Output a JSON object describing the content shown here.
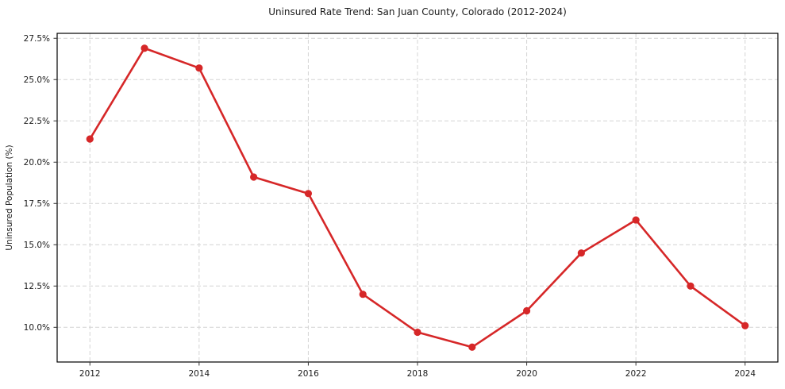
{
  "page": {
    "background": "#ffffff"
  },
  "chart_data": {
    "type": "line",
    "title": "Uninsured Rate Trend: San Juan County, Colorado (2012-2024)",
    "ylabel": "Uninsured Population (%)",
    "xlabel": "",
    "x": [
      2012,
      2013,
      2014,
      2015,
      2016,
      2017,
      2018,
      2019,
      2020,
      2021,
      2022,
      2023,
      2024
    ],
    "series": [
      {
        "name": "Uninsured rate",
        "color": "#d62728",
        "marker": "circle",
        "values": [
          21.4,
          26.9,
          25.7,
          19.1,
          18.1,
          12.0,
          9.7,
          8.8,
          11.0,
          14.5,
          16.5,
          12.5,
          10.1
        ]
      }
    ],
    "xlim": [
      2011.4,
      2024.6
    ],
    "ylim": [
      7.9,
      27.8
    ],
    "xticks": {
      "values": [
        2012,
        2014,
        2016,
        2018,
        2020,
        2022,
        2024
      ],
      "labels": [
        "2012",
        "2014",
        "2016",
        "2018",
        "2020",
        "2022",
        "2024"
      ]
    },
    "yticks": {
      "values": [
        10.0,
        12.5,
        15.0,
        17.5,
        20.0,
        22.5,
        25.0,
        27.5
      ],
      "labels": [
        "10.0%",
        "12.5%",
        "15.0%",
        "17.5%",
        "20.0%",
        "22.5%",
        "25.0%",
        "27.5%"
      ]
    },
    "grid": {
      "show": true,
      "style": "dashed",
      "color": "#d4d4d4"
    },
    "legend": {
      "show": false
    },
    "styles": {
      "spine_color": "#000000",
      "tick_color": "#333333",
      "tick_label_color": "#1a1a1a",
      "line_width": 2.6,
      "marker_radius": 4.6
    }
  }
}
